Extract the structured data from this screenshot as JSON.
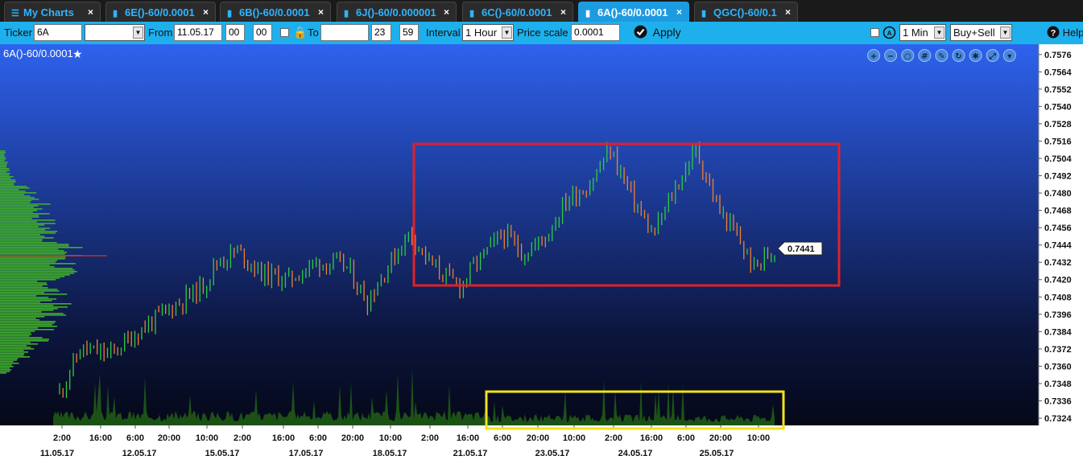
{
  "tabs": [
    {
      "label": "My Charts",
      "icon": "menu-icon",
      "active": false
    },
    {
      "label": "6E()-60/0.0001",
      "icon": "bar-chart-icon",
      "active": false
    },
    {
      "label": "6B()-60/0.0001",
      "icon": "bar-chart-icon",
      "active": false
    },
    {
      "label": "6J()-60/0.000001",
      "icon": "bar-chart-icon",
      "active": false
    },
    {
      "label": "6C()-60/0.0001",
      "icon": "bar-chart-icon",
      "active": false
    },
    {
      "label": "6A()-60/0.0001",
      "icon": "bar-chart-icon",
      "active": true
    },
    {
      "label": "QGC()-60/0.1",
      "icon": "bar-chart-icon",
      "active": false
    }
  ],
  "toolbar": {
    "ticker_label": "Ticker",
    "ticker_value": "6A",
    "contract_value": "",
    "from_label": "From",
    "from_date": "11.05.17",
    "from_hour": "00",
    "from_minute": "00",
    "to_label": "To",
    "to_date": "",
    "to_hour": "23",
    "to_minute": "59",
    "interval_label": "Interval",
    "interval_value": "1 Hour",
    "price_scale_label": "Price scale",
    "price_scale_value": "0.0001",
    "apply_label": "Apply",
    "timeframe_value": "1 Min",
    "side_value": "Buy+Sell",
    "help_label": "Help"
  },
  "chart": {
    "title": "6A()-60/0.0001",
    "current_price": "0.7441",
    "tools": [
      "zoom-in-icon",
      "zoom-out-icon",
      "zoom-reset-icon",
      "grid-icon",
      "pencil-icon",
      "refresh-icon",
      "settings-icon",
      "expand-icon",
      "chevron-down-icon"
    ]
  },
  "chart_data": {
    "type": "candlestick",
    "instrument": "6A()-60/0.0001",
    "interval": "1 Hour",
    "price_ticks": [
      "0.7576",
      "0.7564",
      "0.7552",
      "0.7540",
      "0.7528",
      "0.7516",
      "0.7504",
      "0.7492",
      "0.7480",
      "0.7468",
      "0.7456",
      "0.7444",
      "0.7432",
      "0.7420",
      "0.7408",
      "0.7396",
      "0.7384",
      "0.7372",
      "0.7360",
      "0.7348",
      "0.7336",
      "0.7324"
    ],
    "ylim": [
      0.7319,
      0.7582
    ],
    "time_ticks": [
      "2:00",
      "16:00",
      "6:00",
      "20:00",
      "10:00",
      "2:00",
      "16:00",
      "6:00",
      "20:00",
      "10:00",
      "2:00",
      "16:00",
      "6:00",
      "20:00",
      "10:00",
      "2:00",
      "16:00",
      "6:00",
      "20:00",
      "10:00"
    ],
    "date_labels": [
      "11.05.17",
      "12.05.17",
      "15.05.17",
      "17.05.17",
      "18.05.17",
      "21.05.17",
      "23.05.17",
      "24.05.17",
      "25.05.17"
    ],
    "last_price": 0.7441,
    "price_path": [
      [
        0,
        0.7342
      ],
      [
        0.03,
        0.7372
      ],
      [
        0.07,
        0.7368
      ],
      [
        0.12,
        0.7388
      ],
      [
        0.16,
        0.7402
      ],
      [
        0.2,
        0.7415
      ],
      [
        0.22,
        0.7432
      ],
      [
        0.25,
        0.744
      ],
      [
        0.28,
        0.7425
      ],
      [
        0.32,
        0.742
      ],
      [
        0.36,
        0.7432
      ],
      [
        0.4,
        0.743
      ],
      [
        0.43,
        0.7405
      ],
      [
        0.46,
        0.743
      ],
      [
        0.49,
        0.7453
      ],
      [
        0.52,
        0.743
      ],
      [
        0.56,
        0.7415
      ],
      [
        0.58,
        0.743
      ],
      [
        0.62,
        0.7452
      ],
      [
        0.65,
        0.7438
      ],
      [
        0.68,
        0.745
      ],
      [
        0.71,
        0.7476
      ],
      [
        0.74,
        0.7485
      ],
      [
        0.77,
        0.751
      ],
      [
        0.8,
        0.7478
      ],
      [
        0.83,
        0.745
      ],
      [
        0.86,
        0.7482
      ],
      [
        0.89,
        0.751
      ],
      [
        0.92,
        0.747
      ],
      [
        0.95,
        0.7448
      ],
      [
        0.97,
        0.7428
      ],
      [
        1.0,
        0.7441
      ]
    ],
    "annotations": [
      {
        "type": "rectangle",
        "color": "#e0202a",
        "price_range": [
          0.7418,
          0.752
        ]
      },
      {
        "type": "rectangle",
        "color": "#f2e21a",
        "region": "volume"
      }
    ],
    "colors": {
      "up": "#2ecc40",
      "down": "#f08030",
      "profile": "#3fae2a",
      "volume": "#1f5a16"
    }
  }
}
